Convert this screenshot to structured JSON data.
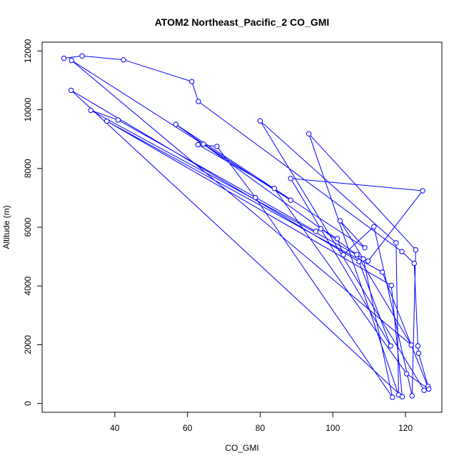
{
  "chart_data": {
    "type": "line",
    "title": "ATOM2 Northeast_Pacific_2 CO_GMI",
    "xlabel": "CO_GMI",
    "ylabel": "Altitude (m)",
    "xlim": [
      20,
      130
    ],
    "ylim": [
      -300,
      12300
    ],
    "x_ticks": [
      40,
      60,
      80,
      100,
      120
    ],
    "y_ticks": [
      0,
      2000,
      4000,
      6000,
      8000,
      10000,
      12000
    ],
    "grid": false,
    "legend": "none",
    "colors": {
      "series": "#0000ff",
      "axes": "#000000",
      "background": "#ffffff"
    },
    "series": [
      {
        "markers": "open-circle",
        "points": [
          [
            26.0,
            11750
          ],
          [
            31.0,
            11830
          ],
          [
            42.4,
            11700
          ],
          [
            61.2,
            10960
          ],
          [
            63.0,
            10280
          ],
          [
            119.0,
            5170
          ],
          [
            122.4,
            4770
          ],
          [
            123.4,
            1960
          ],
          [
            123.6,
            1710
          ],
          [
            126.2,
            580
          ],
          [
            125.1,
            450
          ],
          [
            80.0,
            9620
          ],
          [
            117.4,
            5470
          ],
          [
            118.1,
            290
          ],
          [
            93.4,
            9180
          ],
          [
            122.8,
            5230
          ],
          [
            121.8,
            260
          ],
          [
            111.3,
            6020
          ],
          [
            102.9,
            5060
          ],
          [
            101.2,
            5610
          ],
          [
            96.7,
            5950
          ],
          [
            95.3,
            5860
          ],
          [
            40.9,
            9650
          ],
          [
            33.4,
            9980
          ],
          [
            109.7,
            4850
          ],
          [
            124.7,
            7240
          ],
          [
            88.4,
            7660
          ],
          [
            115.9,
            1960
          ],
          [
            107.2,
            4830
          ],
          [
            28.0,
            10660
          ],
          [
            119.1,
            230
          ],
          [
            116.1,
            4020
          ],
          [
            37.8,
            9610
          ],
          [
            113.6,
            4470
          ],
          [
            126.4,
            490
          ],
          [
            120.3,
            1010
          ],
          [
            83.9,
            7320
          ],
          [
            62.9,
            8810
          ],
          [
            68.1,
            8750
          ],
          [
            78.7,
            7010
          ],
          [
            116.4,
            210
          ],
          [
            108.4,
            4920
          ],
          [
            102.0,
            6220
          ],
          [
            108.8,
            5300
          ],
          [
            56.8,
            9500
          ],
          [
            106.6,
            5070
          ],
          [
            121.6,
            1990
          ],
          [
            28.1,
            11680
          ],
          [
            88.4,
            6920
          ],
          [
            64.4,
            8830
          ]
        ]
      }
    ]
  }
}
